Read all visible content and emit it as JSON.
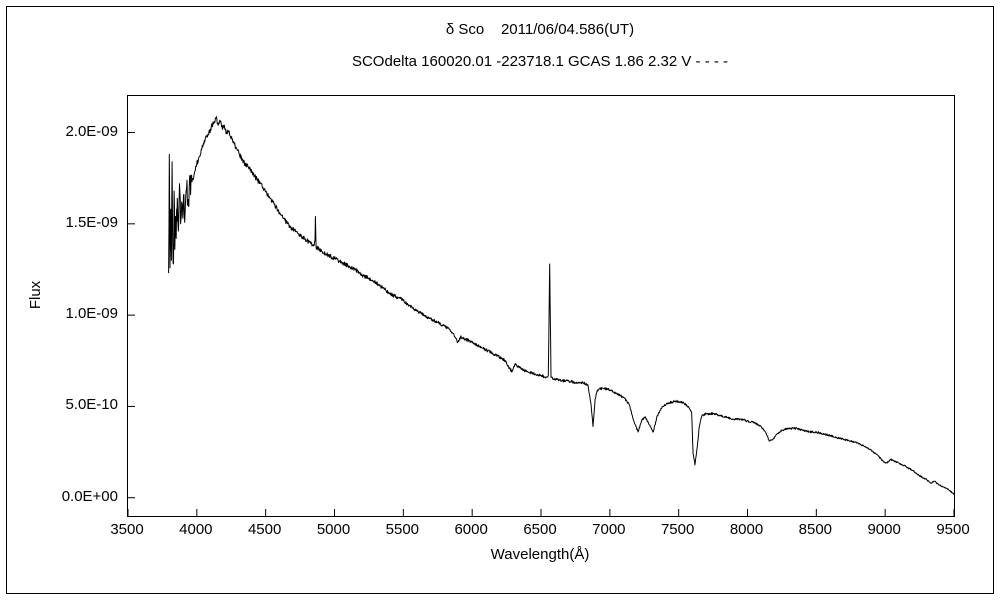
{
  "chart_data": {
    "type": "line",
    "title": "δ Sco    2011/06/04.586(UT)",
    "subtitle": "SCOdelta 160020.01 -223718.1 GCAS 1.86 2.32 V - - - -",
    "xlabel": "Wavelength(Å)",
    "ylabel": "Flux",
    "grid": false,
    "legend": "none",
    "line_color": "#000000",
    "background_color": "#ffffff",
    "xlim": [
      3500,
      9500
    ],
    "ylim": [
      -1,
      22
    ],
    "y_value_unit": "flux values in points are in units of 1e-10 (axis labels show absolute flux)",
    "x_ticks": [
      3500,
      4000,
      4500,
      5000,
      5500,
      6000,
      6500,
      7000,
      7500,
      8000,
      8500,
      9000,
      9500
    ],
    "x_tick_labels": [
      "3500",
      "4000",
      "4500",
      "5000",
      "5500",
      "6000",
      "6500",
      "7000",
      "7500",
      "8000",
      "8500",
      "9000",
      "9500"
    ],
    "y_ticks": [
      0,
      5,
      10,
      15,
      20
    ],
    "y_tick_labels": [
      "0.0E+00",
      "5.0E-10",
      "1.0E-09",
      "1.5E-09",
      "2.0E-09"
    ],
    "noise": {
      "step": 3,
      "base": 0.03,
      "flux_factor": 0.006,
      "noisy_region": [
        3795,
        3965
      ],
      "noisy_amplitude": 0.9
    },
    "series": [
      {
        "name": "delta Sco spectrum",
        "points": [
          [
            3795,
            12.3
          ],
          [
            3800,
            18.8
          ],
          [
            3805,
            12.6
          ],
          [
            3810,
            15.8
          ],
          [
            3815,
            13.0
          ],
          [
            3820,
            18.4
          ],
          [
            3825,
            14.0
          ],
          [
            3830,
            12.8
          ],
          [
            3835,
            16.8
          ],
          [
            3840,
            13.6
          ],
          [
            3845,
            15.4
          ],
          [
            3850,
            14.2
          ],
          [
            3858,
            16.4
          ],
          [
            3866,
            14.6
          ],
          [
            3874,
            17.2
          ],
          [
            3882,
            15.0
          ],
          [
            3890,
            16.2
          ],
          [
            3898,
            15.3
          ],
          [
            3906,
            16.6
          ],
          [
            3915,
            15.6
          ],
          [
            3925,
            16.9
          ],
          [
            3935,
            16.0
          ],
          [
            3945,
            17.1
          ],
          [
            3955,
            16.6
          ],
          [
            3965,
            17.3
          ],
          [
            3980,
            17.7
          ],
          [
            4000,
            18.3
          ],
          [
            4020,
            18.7
          ],
          [
            4040,
            19.3
          ],
          [
            4060,
            19.6
          ],
          [
            4080,
            19.9
          ],
          [
            4100,
            20.2
          ],
          [
            4120,
            20.5
          ],
          [
            4140,
            20.8
          ],
          [
            4155,
            20.4
          ],
          [
            4170,
            20.6
          ],
          [
            4185,
            20.2
          ],
          [
            4200,
            20.4
          ],
          [
            4215,
            20.0
          ],
          [
            4230,
            20.1
          ],
          [
            4250,
            19.7
          ],
          [
            4270,
            19.4
          ],
          [
            4290,
            19.1
          ],
          [
            4310,
            18.8
          ],
          [
            4330,
            18.5
          ],
          [
            4350,
            18.3
          ],
          [
            4375,
            18.1
          ],
          [
            4400,
            17.8
          ],
          [
            4430,
            17.5
          ],
          [
            4460,
            17.2
          ],
          [
            4490,
            16.9
          ],
          [
            4520,
            16.5
          ],
          [
            4560,
            16.1
          ],
          [
            4600,
            15.6
          ],
          [
            4640,
            15.2
          ],
          [
            4680,
            14.8
          ],
          [
            4720,
            14.6
          ],
          [
            4760,
            14.3
          ],
          [
            4800,
            14.1
          ],
          [
            4830,
            13.9
          ],
          [
            4852,
            13.8
          ],
          [
            4858,
            14.1
          ],
          [
            4861,
            15.4
          ],
          [
            4866,
            13.7
          ],
          [
            4890,
            13.6
          ],
          [
            4920,
            13.4
          ],
          [
            4950,
            13.3
          ],
          [
            5000,
            13.1
          ],
          [
            5050,
            12.9
          ],
          [
            5100,
            12.7
          ],
          [
            5150,
            12.5
          ],
          [
            5200,
            12.2
          ],
          [
            5250,
            12.0
          ],
          [
            5300,
            11.8
          ],
          [
            5350,
            11.5
          ],
          [
            5400,
            11.2
          ],
          [
            5450,
            11.0
          ],
          [
            5500,
            10.8
          ],
          [
            5550,
            10.5
          ],
          [
            5600,
            10.2
          ],
          [
            5650,
            10.0
          ],
          [
            5700,
            9.8
          ],
          [
            5750,
            9.6
          ],
          [
            5800,
            9.4
          ],
          [
            5840,
            9.2
          ],
          [
            5875,
            8.8
          ],
          [
            5895,
            8.5
          ],
          [
            5915,
            8.8
          ],
          [
            5950,
            8.7
          ],
          [
            6000,
            8.5
          ],
          [
            6050,
            8.3
          ],
          [
            6100,
            8.1
          ],
          [
            6150,
            7.9
          ],
          [
            6200,
            7.7
          ],
          [
            6240,
            7.5
          ],
          [
            6270,
            7.1
          ],
          [
            6290,
            6.9
          ],
          [
            6310,
            7.3
          ],
          [
            6350,
            7.1
          ],
          [
            6400,
            6.9
          ],
          [
            6450,
            6.8
          ],
          [
            6500,
            6.7
          ],
          [
            6540,
            6.6
          ],
          [
            6553,
            6.7
          ],
          [
            6563,
            12.8
          ],
          [
            6573,
            6.6
          ],
          [
            6600,
            6.5
          ],
          [
            6650,
            6.4
          ],
          [
            6700,
            6.4
          ],
          [
            6750,
            6.3
          ],
          [
            6800,
            6.3
          ],
          [
            6840,
            6.2
          ],
          [
            6862,
            5.2
          ],
          [
            6878,
            3.9
          ],
          [
            6893,
            5.4
          ],
          [
            6910,
            5.9
          ],
          [
            6950,
            6.0
          ],
          [
            7000,
            5.9
          ],
          [
            7050,
            5.7
          ],
          [
            7100,
            5.5
          ],
          [
            7140,
            5.1
          ],
          [
            7175,
            4.2
          ],
          [
            7205,
            3.6
          ],
          [
            7235,
            4.3
          ],
          [
            7260,
            4.4
          ],
          [
            7285,
            4.0
          ],
          [
            7315,
            3.6
          ],
          [
            7345,
            4.5
          ],
          [
            7385,
            5.0
          ],
          [
            7430,
            5.2
          ],
          [
            7480,
            5.3
          ],
          [
            7530,
            5.2
          ],
          [
            7570,
            5.0
          ],
          [
            7594,
            4.7
          ],
          [
            7605,
            2.4
          ],
          [
            7618,
            1.8
          ],
          [
            7632,
            2.6
          ],
          [
            7650,
            3.9
          ],
          [
            7668,
            4.5
          ],
          [
            7700,
            4.6
          ],
          [
            7750,
            4.6
          ],
          [
            7800,
            4.5
          ],
          [
            7850,
            4.4
          ],
          [
            7900,
            4.3
          ],
          [
            7950,
            4.3
          ],
          [
            8000,
            4.2
          ],
          [
            8050,
            4.1
          ],
          [
            8100,
            3.9
          ],
          [
            8130,
            3.6
          ],
          [
            8160,
            3.1
          ],
          [
            8185,
            3.2
          ],
          [
            8215,
            3.5
          ],
          [
            8250,
            3.7
          ],
          [
            8300,
            3.8
          ],
          [
            8350,
            3.8
          ],
          [
            8400,
            3.7
          ],
          [
            8450,
            3.6
          ],
          [
            8500,
            3.6
          ],
          [
            8550,
            3.5
          ],
          [
            8600,
            3.4
          ],
          [
            8650,
            3.3
          ],
          [
            8700,
            3.2
          ],
          [
            8750,
            3.1
          ],
          [
            8800,
            3.0
          ],
          [
            8850,
            2.8
          ],
          [
            8900,
            2.6
          ],
          [
            8950,
            2.3
          ],
          [
            8985,
            2.0
          ],
          [
            9010,
            1.9
          ],
          [
            9040,
            2.1
          ],
          [
            9070,
            2.0
          ],
          [
            9100,
            1.9
          ],
          [
            9150,
            1.7
          ],
          [
            9200,
            1.5
          ],
          [
            9250,
            1.2
          ],
          [
            9300,
            1.0
          ],
          [
            9330,
            0.8
          ],
          [
            9360,
            0.9
          ],
          [
            9390,
            0.7
          ],
          [
            9420,
            0.6
          ],
          [
            9450,
            0.5
          ],
          [
            9475,
            0.35
          ],
          [
            9500,
            0.2
          ]
        ]
      }
    ]
  }
}
